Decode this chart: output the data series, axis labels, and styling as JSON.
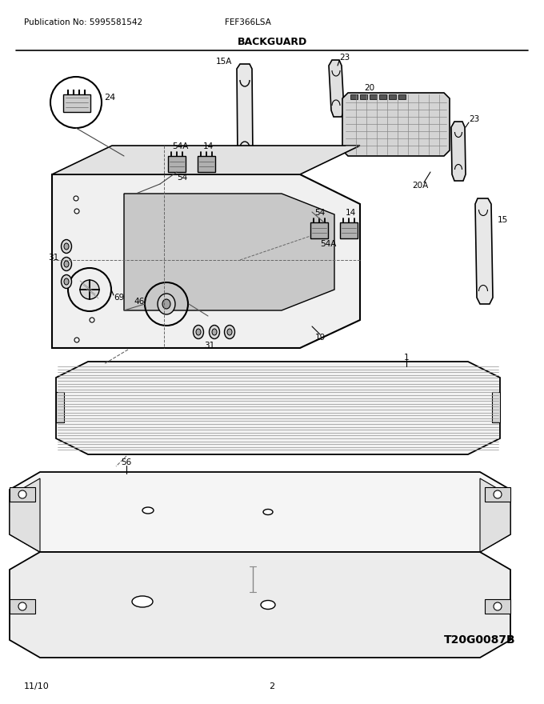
{
  "pub_no": "Publication No: 5995581542",
  "model": "FEF366LSA",
  "section": "BACKGUARD",
  "date": "11/10",
  "page": "2",
  "diagram_code": "T20G0087B",
  "bg_color": "#ffffff",
  "line_color": "#000000",
  "text_color": "#000000"
}
